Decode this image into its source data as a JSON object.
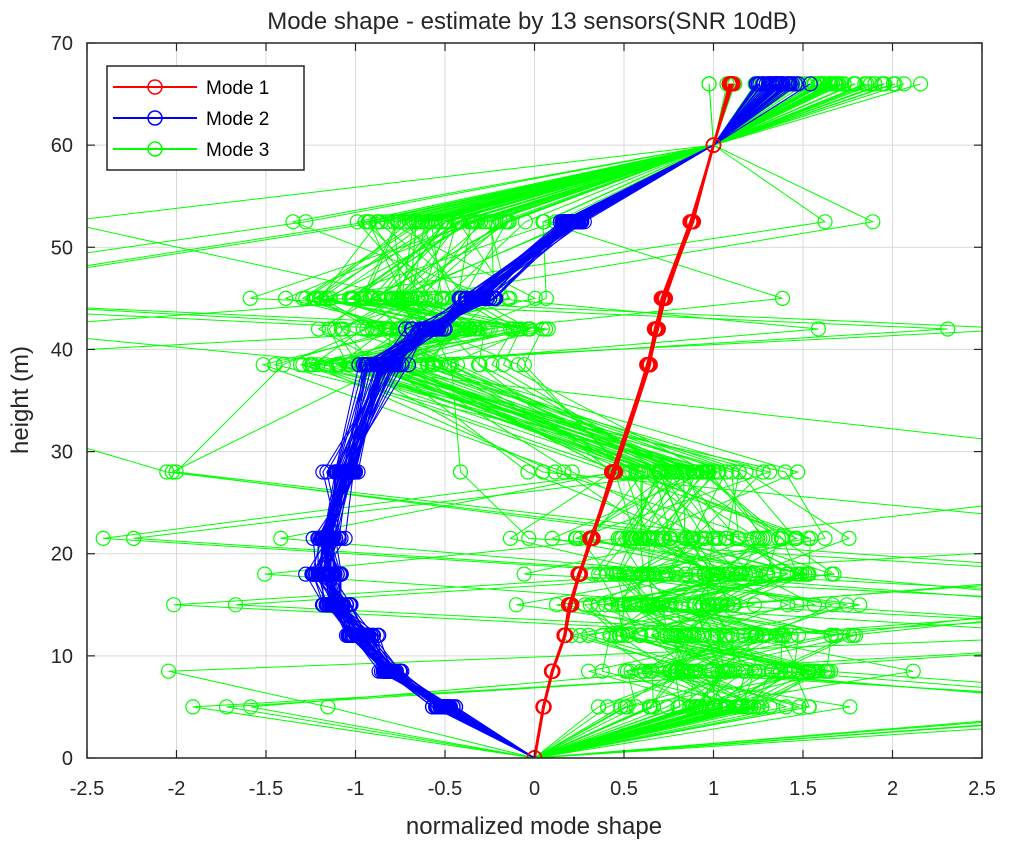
{
  "chart_data": {
    "type": "line",
    "title": "Mode shape - estimate by 13 sensors(SNR 10dB)",
    "xlabel": "normalized mode shape",
    "ylabel": "height (m)",
    "xlim": [
      -2.5,
      2.5
    ],
    "ylim": [
      0,
      70
    ],
    "xticks": [
      -2.5,
      -2,
      -1.5,
      -1,
      -0.5,
      0,
      0.5,
      1,
      1.5,
      2,
      2.5
    ],
    "xtick_labels": [
      "-2.5",
      "-2",
      "-1.5",
      "-1",
      "-0.5",
      "0",
      "0.5",
      "1",
      "1.5",
      "2",
      "2.5"
    ],
    "yticks": [
      0,
      10,
      20,
      30,
      40,
      50,
      60,
      70
    ],
    "ytick_labels": [
      "0",
      "10",
      "20",
      "30",
      "40",
      "50",
      "60",
      "70"
    ],
    "grid": true,
    "legend_position": "top-left",
    "marker": "circle",
    "heights": [
      0,
      5,
      8.5,
      12,
      15,
      18,
      21.5,
      28,
      38.5,
      42,
      45,
      52.5,
      60,
      66
    ],
    "series": [
      {
        "name": "Mode 1",
        "color": "#ff0000",
        "values": [
          0,
          0.05,
          0.1,
          0.17,
          0.2,
          0.25,
          0.32,
          0.44,
          0.64,
          0.68,
          0.72,
          0.88,
          1.0,
          1.1
        ]
      },
      {
        "name": "Mode 2",
        "color": "#0000ff",
        "values": [
          0,
          -0.5,
          -0.8,
          -0.98,
          -1.1,
          -1.15,
          -1.15,
          -1.05,
          -0.85,
          -0.6,
          -0.32,
          0.2,
          1.0,
          1.35
        ]
      },
      {
        "name": "Mode 3",
        "color": "#00ff00",
        "values": [
          0,
          0.9,
          1.05,
          0.95,
          0.9,
          1.0,
          0.85,
          0.7,
          -0.8,
          -0.6,
          -0.8,
          -0.5,
          1.0,
          1.6
        ]
      }
    ]
  }
}
